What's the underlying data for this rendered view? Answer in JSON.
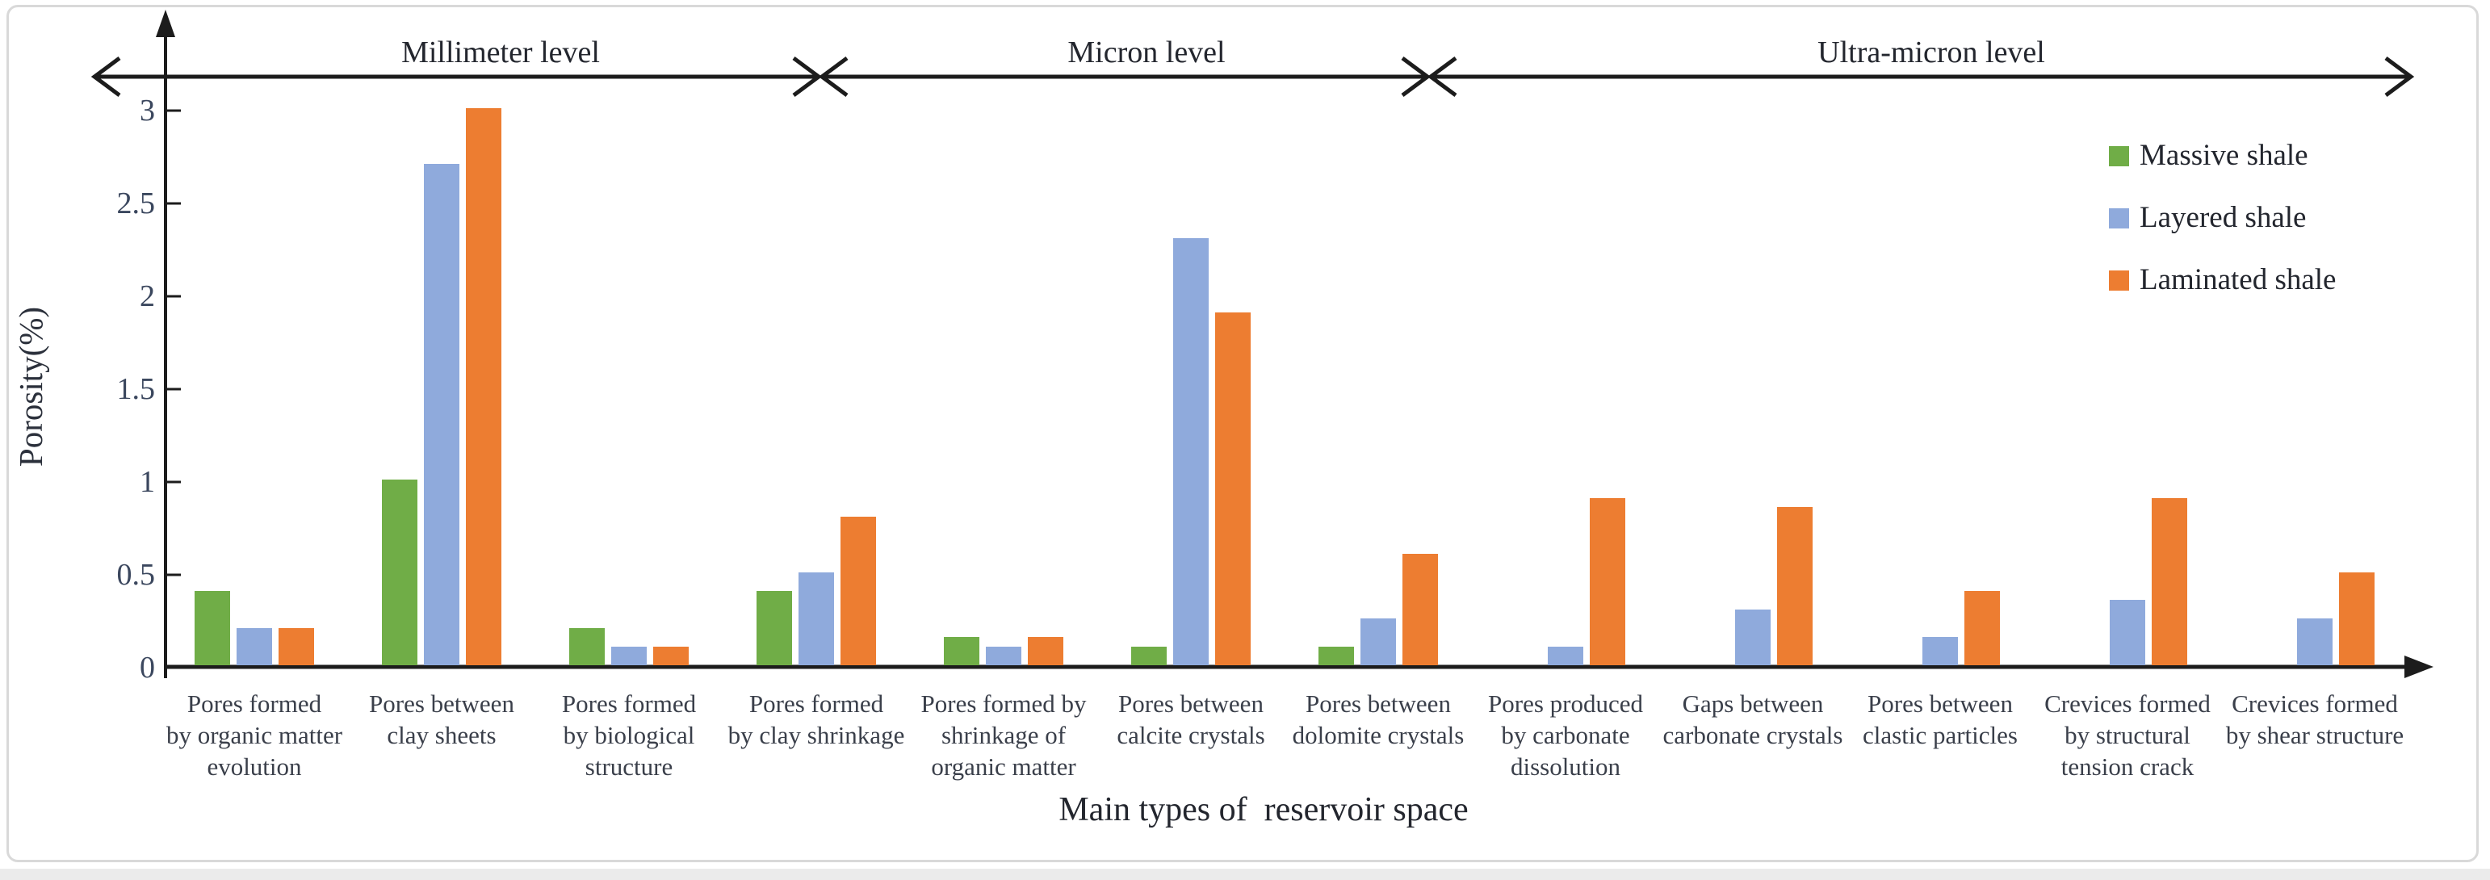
{
  "chart_data": {
    "type": "bar",
    "title": "",
    "xlabel": "Main types of  reservoir space",
    "ylabel": "Porosity(%)",
    "ylim": [
      0,
      3
    ],
    "ytick_labels": [
      "0",
      "0.5",
      "1",
      "1.5",
      "2",
      "2.5",
      "3"
    ],
    "ytick_values": [
      0,
      0.5,
      1,
      1.5,
      2,
      2.5,
      3
    ],
    "grid": "off",
    "legend_position": "upper-right",
    "level_groups": [
      {
        "label": "Millimeter level",
        "categories_covered": [
          "Pores formed by organic matter evolution",
          "Pores between clay sheets",
          "Pores formed by biological structure",
          "Pores formed by clay shrinkage"
        ]
      },
      {
        "label": "Micron level",
        "categories_covered": [
          "Pores formed by shrinkage of organic matter",
          "Pores between calcite crystals",
          "Pores between dolomite crystals"
        ]
      },
      {
        "label": "Ultra-micron level",
        "categories_covered": [
          "Pores produced by carbonate dissolution",
          "Gaps between carbonate crystals",
          "Pores between clastic particles",
          "Crevices formed by structural tension crack",
          "Crevices formed by shear structure"
        ]
      }
    ],
    "categories": [
      "Pores formed\nby organic matter\nevolution",
      "Pores between\nclay sheets",
      "Pores formed\nby biological\nstructure",
      "Pores formed\nby clay shrinkage",
      "Pores formed by\nshrinkage of\norganic matter",
      "Pores between\ncalcite crystals",
      "Pores between\ndolomite crystals",
      "Pores produced\nby carbonate\ndissolution",
      "Gaps between\ncarbonate crystals",
      "Pores between\nclastic particles",
      "Crevices formed\nby structural\ntension crack",
      "Crevices formed\nby shear structure"
    ],
    "series": [
      {
        "name": "Massive shale",
        "color": "#70AD47",
        "values": [
          0.4,
          1.0,
          0.2,
          0.4,
          0.15,
          0.1,
          0.1,
          0,
          0,
          0,
          0,
          0
        ]
      },
      {
        "name": "Layered shale",
        "color": "#8FAADC",
        "values": [
          0.2,
          2.7,
          0.1,
          0.5,
          0.1,
          2.3,
          0.25,
          0.1,
          0.3,
          0.15,
          0.35,
          0.25
        ]
      },
      {
        "name": "Laminated shale",
        "color": "#ED7D31",
        "values": [
          0.2,
          3.0,
          0.1,
          0.8,
          0.15,
          1.9,
          0.6,
          0.9,
          0.85,
          0.4,
          0.9,
          0.5
        ]
      }
    ]
  },
  "colors": {
    "axis": "#1c1c1c",
    "frame_border": "#d9d9d9",
    "background": "#ffffff"
  }
}
